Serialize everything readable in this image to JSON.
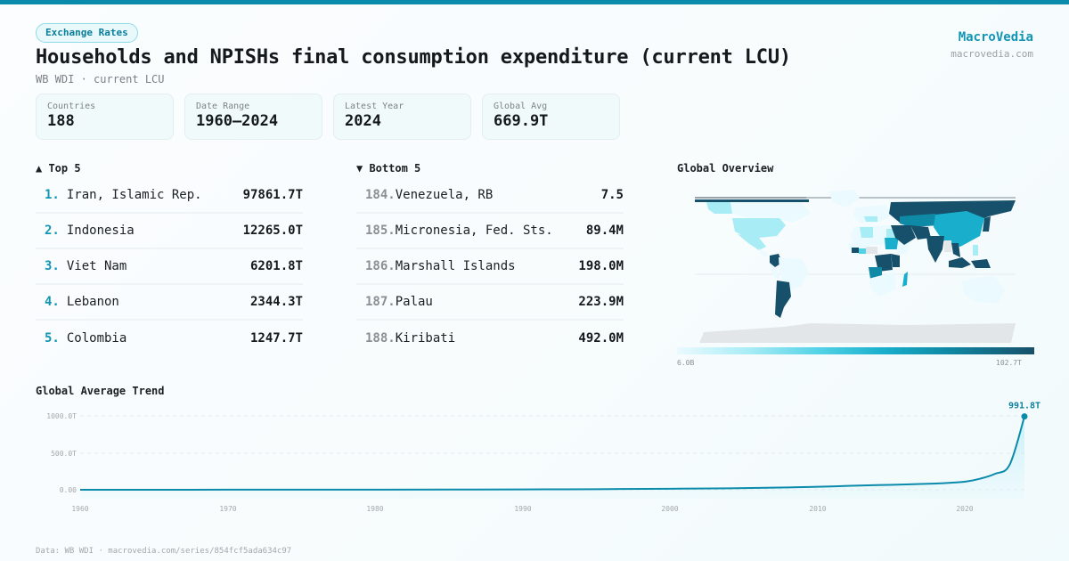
{
  "header": {
    "tag": "Exchange Rates",
    "title": "Households and NPISHs final consumption expenditure (current LCU)",
    "subtitle": "WB WDI · current LCU"
  },
  "brand": {
    "name": "MacroVedia",
    "url": "macrovedia.com"
  },
  "stats": [
    {
      "label": "Countries",
      "value": "188"
    },
    {
      "label": "Date Range",
      "value": "1960–2024"
    },
    {
      "label": "Latest Year",
      "value": "2024"
    },
    {
      "label": "Global Avg",
      "value": "669.9T"
    }
  ],
  "top5": {
    "title": "▲ Top 5",
    "items": [
      {
        "rank": "1.",
        "name": "Iran, Islamic Rep.",
        "value": "97861.7T"
      },
      {
        "rank": "2.",
        "name": "Indonesia",
        "value": "12265.0T"
      },
      {
        "rank": "3.",
        "name": "Viet Nam",
        "value": "6201.8T"
      },
      {
        "rank": "4.",
        "name": "Lebanon",
        "value": "2344.3T"
      },
      {
        "rank": "5.",
        "name": "Colombia",
        "value": "1247.7T"
      }
    ]
  },
  "bottom5": {
    "title": "▼ Bottom 5",
    "items": [
      {
        "rank": "184.",
        "name": "Venezuela, RB",
        "value": "7.5"
      },
      {
        "rank": "185.",
        "name": "Micronesia, Fed. Sts.",
        "value": "89.4M"
      },
      {
        "rank": "186.",
        "name": "Marshall Islands",
        "value": "198.0M"
      },
      {
        "rank": "187.",
        "name": "Palau",
        "value": "223.9M"
      },
      {
        "rank": "188.",
        "name": "Kiribati",
        "value": "492.0M"
      }
    ]
  },
  "map": {
    "title": "Global Overview",
    "legend_min": "6.0B",
    "legend_max": "102.7T",
    "colors": {
      "lowest": "#eafaff",
      "low": "#a8ecf6",
      "mid": "#52d2e6",
      "midhigh": "#19aecb",
      "high": "#0f8aa6",
      "highest": "#17506a",
      "nodata": "#e3e6e9"
    }
  },
  "trend": {
    "title": "Global Average Trend",
    "end_label": "991.8T",
    "line_color": "#0b8bab"
  },
  "chart_data": {
    "type": "area",
    "title": "Global Average Trend",
    "xlabel": "",
    "ylabel": "",
    "x_ticks": [
      "1960",
      "1970",
      "1980",
      "1990",
      "2000",
      "2010",
      "2020"
    ],
    "y_ticks": [
      "0.00",
      "500.0T",
      "1000.0T"
    ],
    "ylim": [
      0,
      1000
    ],
    "grid": true,
    "legend": "none",
    "annotations": [
      {
        "x": 2024,
        "label": "991.8T"
      }
    ],
    "x": [
      1960,
      1965,
      1970,
      1975,
      1980,
      1985,
      1990,
      1995,
      2000,
      2003,
      2005,
      2008,
      2010,
      2012,
      2014,
      2016,
      2018,
      2019,
      2020,
      2021,
      2022,
      2023,
      2024
    ],
    "series": [
      {
        "name": "Global Average (T LCU)",
        "values": [
          0.5,
          0.6,
          0.8,
          1.2,
          2,
          3,
          5,
          8,
          14,
          18,
          22,
          32,
          40,
          52,
          63,
          72,
          85,
          95,
          110,
          150,
          215,
          340,
          991.8
        ]
      }
    ]
  },
  "footer": {
    "text": "Data: WB WDI · macrovedia.com/series/854fcf5ada634c97"
  }
}
